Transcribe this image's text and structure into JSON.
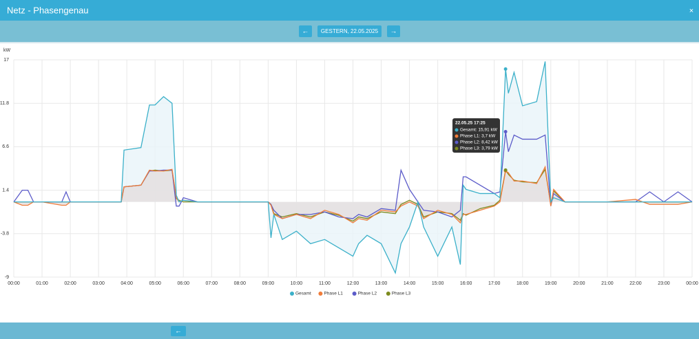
{
  "header": {
    "title": "Netz - Phasengenau",
    "close": "×"
  },
  "nav": {
    "prev": "←",
    "date": "GESTERN, 22.05.2025",
    "next": "→"
  },
  "footer": {
    "back": "←"
  },
  "chart_data": {
    "type": "line",
    "y_label": "kW",
    "ylim": [
      -9,
      17
    ],
    "yticks": [
      -9,
      -3.8,
      1.4,
      6.6,
      11.8,
      17
    ],
    "xlim": [
      0,
      24
    ],
    "xticks": [
      {
        "value": 0,
        "label": "00:00"
      },
      {
        "value": 1,
        "label": "01:00"
      },
      {
        "value": 2,
        "label": "02:00"
      },
      {
        "value": 3,
        "label": "03:00"
      },
      {
        "value": 4,
        "label": "04:00"
      },
      {
        "value": 5,
        "label": "05:00"
      },
      {
        "value": 6,
        "label": "06:00"
      },
      {
        "value": 7,
        "label": "07:00"
      },
      {
        "value": 8,
        "label": "08:00"
      },
      {
        "value": 9,
        "label": "09:00"
      },
      {
        "value": 10,
        "label": "10:00"
      },
      {
        "value": 11,
        "label": "11:00"
      },
      {
        "value": 12,
        "label": "12:00"
      },
      {
        "value": 13,
        "label": "13:00"
      },
      {
        "value": 14,
        "label": "14:00"
      },
      {
        "value": 15,
        "label": "15:00"
      },
      {
        "value": 16,
        "label": "16:00"
      },
      {
        "value": 17,
        "label": "17:00"
      },
      {
        "value": 18,
        "label": "18:00"
      },
      {
        "value": 19,
        "label": "19:00"
      },
      {
        "value": 20,
        "label": "20:00"
      },
      {
        "value": 21,
        "label": "21:00"
      },
      {
        "value": 22,
        "label": "22:00"
      },
      {
        "value": 23,
        "label": "23:00"
      },
      {
        "value": 24,
        "label": "00:00"
      }
    ],
    "grid": true,
    "legend": "bottom",
    "x": [
      0,
      0.3,
      0.5,
      0.7,
      1,
      1.7,
      1.85,
      2,
      3,
      3.8,
      3.9,
      4.5,
      4.8,
      5,
      5.3,
      5.6,
      5.75,
      5.85,
      6,
      6.5,
      7,
      8,
      9,
      9.1,
      9.2,
      9.5,
      10,
      10.5,
      11,
      11.5,
      12,
      12.2,
      12.5,
      13,
      13.5,
      13.7,
      14,
      14.3,
      14.5,
      15,
      15.5,
      15.8,
      15.9,
      16,
      16.5,
      17,
      17.2,
      17.4,
      17.5,
      17.7,
      18,
      18.5,
      18.8,
      19,
      19.1,
      19.5,
      20,
      21,
      22,
      22.5,
      23,
      23.5,
      24
    ],
    "series": [
      {
        "name": "Gesamt",
        "color": "#3bb0c9",
        "fill": "#e9f4f9",
        "values": [
          0,
          0,
          0,
          0,
          0,
          0,
          0,
          0,
          0,
          0,
          6.2,
          6.5,
          11.6,
          11.6,
          12.6,
          11.8,
          0.8,
          0,
          0.2,
          0,
          0,
          0,
          0,
          -4.3,
          -1.5,
          -4.5,
          -3.5,
          -5,
          -4.5,
          -5.5,
          -6.5,
          -5,
          -4,
          -5,
          -8.5,
          -5,
          -3,
          0,
          -3,
          -6.5,
          -3,
          -7.5,
          2,
          1.5,
          1,
          1,
          0.5,
          15.9,
          13,
          15.5,
          11.5,
          12,
          16.8,
          0,
          0.5,
          0,
          0,
          0,
          0,
          0,
          0,
          0,
          0
        ]
      },
      {
        "name": "Phase L1",
        "color": "#f07c3a",
        "fill": "#e3dfdf",
        "values": [
          0,
          -0.4,
          -0.4,
          0,
          0,
          -0.4,
          -0.4,
          0,
          0,
          0,
          1.8,
          2,
          3.8,
          3.7,
          3.7,
          3.9,
          0.5,
          0,
          0.2,
          0,
          0,
          0,
          0,
          -0.4,
          -1.5,
          -2,
          -1.5,
          -2,
          -1,
          -1.5,
          -2.5,
          -2,
          -2.2,
          -1,
          -1.2,
          -0.5,
          0,
          -0.5,
          -2,
          -1,
          -1.5,
          -2.5,
          -1.5,
          -1.5,
          -1,
          -0.5,
          0,
          3.7,
          3.5,
          2.5,
          2.5,
          2.2,
          4.2,
          -0.5,
          1.5,
          0,
          0,
          0,
          0.3,
          -0.3,
          -0.3,
          -0.3,
          0
        ]
      },
      {
        "name": "Phase L2",
        "color": "#5b5bc9",
        "values": [
          0,
          1.4,
          1.4,
          0,
          0,
          0,
          1.2,
          0,
          0,
          0,
          1.8,
          2,
          3.7,
          3.7,
          3.8,
          3.8,
          -0.5,
          -0.5,
          0.5,
          0,
          0,
          0,
          0,
          -0.3,
          -1,
          -2,
          -1.5,
          -1.5,
          -1.2,
          -1.8,
          -2,
          -1.5,
          -1.8,
          -0.8,
          -1,
          3.8,
          1.5,
          0,
          -1,
          -1.2,
          -1.8,
          -1,
          3,
          3,
          2,
          1,
          1.2,
          8.4,
          6,
          8,
          7.5,
          7.5,
          8,
          -0.5,
          1,
          0,
          0,
          0,
          0,
          1.2,
          0,
          1.2,
          0
        ]
      },
      {
        "name": "Phase L3",
        "color": "#7d8b1e",
        "values": [
          0,
          0,
          0,
          0,
          0,
          0,
          0,
          0,
          0,
          0,
          1.8,
          2,
          3.7,
          3.8,
          3.7,
          3.8,
          0.4,
          0.2,
          0,
          0,
          0,
          0,
          0,
          -0.3,
          -1.4,
          -1.8,
          -1.4,
          -1.8,
          -1.2,
          -1.6,
          -2.3,
          -1.8,
          -2,
          -1.2,
          -1.4,
          -0.3,
          0.2,
          -0.3,
          -1.8,
          -1.2,
          -1.4,
          -2.2,
          -1.4,
          -1.6,
          -0.8,
          -0.4,
          0.2,
          3.8,
          3.3,
          2.6,
          2.4,
          2.3,
          3.9,
          -0.3,
          1.3,
          0,
          0,
          0,
          0,
          0,
          0,
          0,
          0
        ]
      }
    ],
    "tooltip": {
      "index": 47,
      "title": "22.05.25 17:25",
      "lines": [
        "Gesamt: 15,91 kW",
        "Phase L1: 3,7 kW",
        "Phase L2: 8,42 kW",
        "Phase L3: 3,79 kW"
      ]
    }
  }
}
